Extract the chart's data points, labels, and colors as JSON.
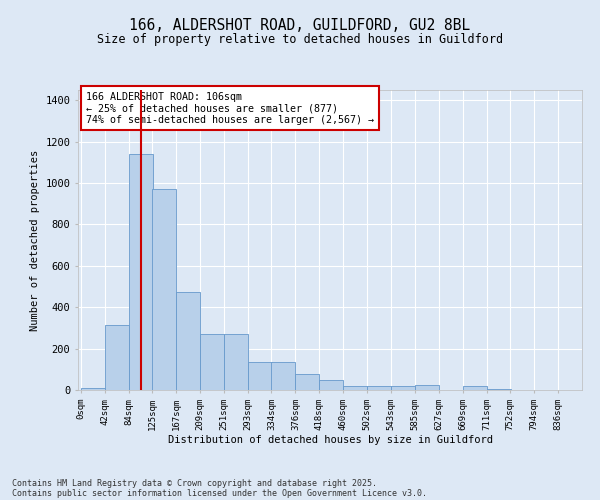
{
  "title1": "166, ALDERSHOT ROAD, GUILDFORD, GU2 8BL",
  "title2": "Size of property relative to detached houses in Guildford",
  "xlabel": "Distribution of detached houses by size in Guildford",
  "ylabel": "Number of detached properties",
  "bar_labels": [
    "0sqm",
    "42sqm",
    "84sqm",
    "125sqm",
    "167sqm",
    "209sqm",
    "251sqm",
    "293sqm",
    "334sqm",
    "376sqm",
    "418sqm",
    "460sqm",
    "502sqm",
    "543sqm",
    "585sqm",
    "627sqm",
    "669sqm",
    "711sqm",
    "752sqm",
    "794sqm",
    "836sqm"
  ],
  "bar_values": [
    10,
    315,
    1140,
    970,
    475,
    270,
    270,
    135,
    135,
    75,
    48,
    20,
    20,
    20,
    22,
    0,
    20,
    5,
    2,
    2,
    2
  ],
  "bar_color": "#b8d0ea",
  "bar_edge_color": "#6699cc",
  "vline_color": "#cc0000",
  "vline_x": 106,
  "annotation_line1": "166 ALDERSHOT ROAD: 106sqm",
  "annotation_line2": "← 25% of detached houses are smaller (877)",
  "annotation_line3": "74% of semi-detached houses are larger (2,567) →",
  "annotation_box_color": "#ffffff",
  "annotation_box_edge": "#cc0000",
  "ylim": [
    0,
    1450
  ],
  "bg_color": "#dde8f5",
  "plot_bg_color": "#dde8f5",
  "footer1": "Contains HM Land Registry data © Crown copyright and database right 2025.",
  "footer2": "Contains public sector information licensed under the Open Government Licence v3.0.",
  "bin_width": 42
}
